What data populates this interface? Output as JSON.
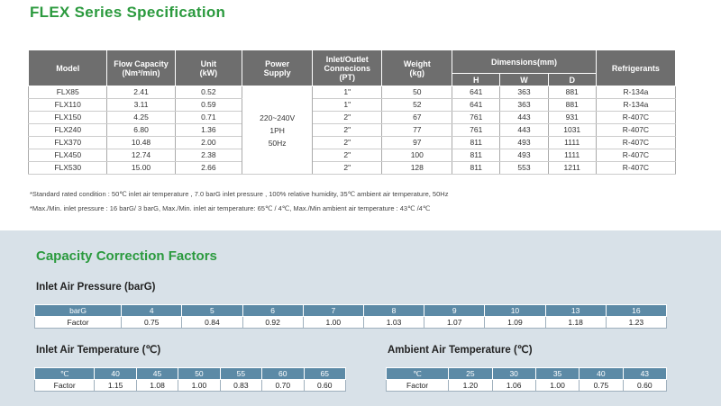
{
  "spec": {
    "title": "FLEX Series Specification",
    "headers": {
      "model": "Model",
      "flow_capacity": "Flow Capacity\n(Nm³/min)",
      "unit": "Unit\n(kW)",
      "power_supply": "Power\nSupply",
      "inlet_outlet": "Inlet/Outlet\nConnecions\n(PT)",
      "weight": "Weight\n(kg)",
      "dimensions": "Dimensions(mm)",
      "refrigerants": "Refrigerants",
      "h": "H",
      "w": "W",
      "d": "D"
    },
    "power_supply_value": "220~240V\n1PH\n50Hz",
    "rows": [
      {
        "model": "FLX85",
        "flow": "2.41",
        "unit": "0.52",
        "conn": "1\"",
        "weight": "50",
        "h": "641",
        "w": "363",
        "d": "881",
        "ref": "R-134a"
      },
      {
        "model": "FLX110",
        "flow": "3.11",
        "unit": "0.59",
        "conn": "1\"",
        "weight": "52",
        "h": "641",
        "w": "363",
        "d": "881",
        "ref": "R-134a"
      },
      {
        "model": "FLX150",
        "flow": "4.25",
        "unit": "0.71",
        "conn": "2\"",
        "weight": "67",
        "h": "761",
        "w": "443",
        "d": "931",
        "ref": "R-407C"
      },
      {
        "model": "FLX240",
        "flow": "6.80",
        "unit": "1.36",
        "conn": "2\"",
        "weight": "77",
        "h": "761",
        "w": "443",
        "d": "1031",
        "ref": "R-407C"
      },
      {
        "model": "FLX370",
        "flow": "10.48",
        "unit": "2.00",
        "conn": "2\"",
        "weight": "97",
        "h": "811",
        "w": "493",
        "d": "1111",
        "ref": "R-407C"
      },
      {
        "model": "FLX450",
        "flow": "12.74",
        "unit": "2.38",
        "conn": "2\"",
        "weight": "100",
        "h": "811",
        "w": "493",
        "d": "1111",
        "ref": "R-407C"
      },
      {
        "model": "FLX530",
        "flow": "15.00",
        "unit": "2.66",
        "conn": "2\"",
        "weight": "128",
        "h": "811",
        "w": "553",
        "d": "1211",
        "ref": "R-407C"
      }
    ],
    "note1": "*Standard rated condition : 50℃ inlet air temperature , 7.0 barG inlet pressure , 100% relative humidity, 35℃ ambient air temperature, 50Hz",
    "note2": "*Max./Min. inlet pressure : 16 barG/ 3 barG, Max./Min. inlet air temperature: 65℃ / 4℃, Max./Min ambient air temperature : 43℃ /4℃"
  },
  "correction": {
    "title": "Capacity Correction Factors",
    "pressure": {
      "title": "Inlet Air Pressure (barG)",
      "header_label": "barG",
      "factor_label": "Factor",
      "keys": [
        "4",
        "5",
        "6",
        "7",
        "8",
        "9",
        "10",
        "13",
        "16"
      ],
      "values": [
        "0.75",
        "0.84",
        "0.92",
        "1.00",
        "1.03",
        "1.07",
        "1.09",
        "1.18",
        "1.23"
      ]
    },
    "inlet_temp": {
      "title": "Inlet Air Temperature (℃)",
      "header_label": "℃",
      "factor_label": "Factor",
      "keys": [
        "40",
        "45",
        "50",
        "55",
        "60",
        "65"
      ],
      "values": [
        "1.15",
        "1.08",
        "1.00",
        "0.83",
        "0.70",
        "0.60"
      ]
    },
    "ambient_temp": {
      "title": "Ambient Air Temperature (℃)",
      "header_label": "℃",
      "factor_label": "Factor",
      "keys": [
        "25",
        "30",
        "35",
        "40",
        "43"
      ],
      "values": [
        "1.20",
        "1.06",
        "1.00",
        "0.75",
        "0.60"
      ]
    }
  }
}
